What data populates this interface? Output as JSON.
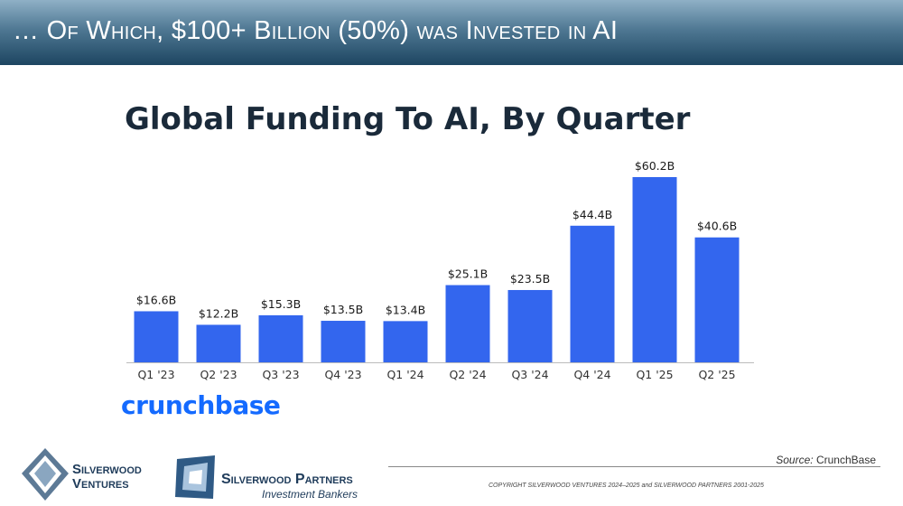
{
  "header": {
    "title": "… Of Which, $100+ Billion (50%) was Invested in AI"
  },
  "chart_data": {
    "type": "bar",
    "title": "Global Funding To AI, By Quarter",
    "categories": [
      "Q1 '23",
      "Q2 '23",
      "Q3 '23",
      "Q4 '23",
      "Q1 '24",
      "Q2 '24",
      "Q3 '24",
      "Q4 '24",
      "Q1 '25",
      "Q2 '25"
    ],
    "values": [
      16.6,
      12.2,
      15.3,
      13.5,
      13.4,
      25.1,
      23.5,
      44.4,
      60.2,
      40.6
    ],
    "data_labels": [
      "$16.6B",
      "$12.2B",
      "$15.3B",
      "$13.5B",
      "$13.4B",
      "$25.1B",
      "$23.5B",
      "$44.4B",
      "$60.2B",
      "$40.6B"
    ],
    "unit": "$B",
    "ylim": [
      0,
      60.2
    ],
    "grid": false,
    "bar_color": "#3366ee"
  },
  "brand": {
    "crunchbase": "crunchbase"
  },
  "footer": {
    "source_label": "Source:",
    "source_value": "CrunchBase",
    "copyright": "COPYRIGHT SILVERWOOD VENTURES 2024–2025 and SILVERWOOD PARTNERS 2001-2025",
    "logo1_text": "Silverwood\nVentures",
    "logo2_name": "Silverwood Partners",
    "logo2_sub": "Investment Bankers"
  },
  "colors": {
    "header": "#1d4561",
    "accent": "#3366ee",
    "crunchbase": "#146aff"
  }
}
